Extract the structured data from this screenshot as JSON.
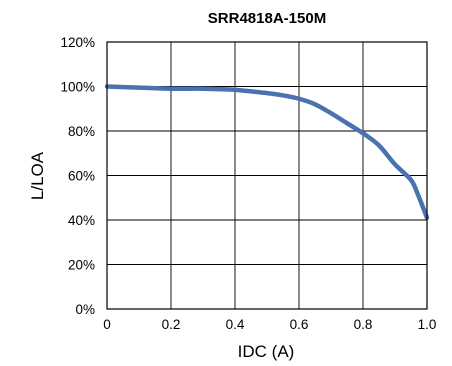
{
  "chart_data": {
    "type": "line",
    "title": "SRR4818A-150M",
    "xlabel": "IDC (A)",
    "ylabel": "L/LOA",
    "xlim": [
      0,
      1.0
    ],
    "ylim": [
      0,
      120
    ],
    "x_ticks": [
      "0",
      "0.2",
      "0.4",
      "0.6",
      "0.8",
      "1.0"
    ],
    "y_ticks": [
      "0%",
      "20%",
      "40%",
      "60%",
      "80%",
      "100%",
      "120%"
    ],
    "grid": true,
    "legend": "none",
    "series_color": "#4a72b0",
    "series": [
      {
        "x": [
          0,
          0.1,
          0.2,
          0.3,
          0.4,
          0.5,
          0.55,
          0.6,
          0.65,
          0.7,
          0.75,
          0.8,
          0.85,
          0.9,
          0.95,
          0.97,
          1.0
        ],
        "values": [
          100,
          99.5,
          99,
          99,
          98.5,
          97,
          96,
          94.5,
          92,
          88,
          83.5,
          79,
          73.5,
          65,
          58,
          52,
          41
        ]
      }
    ]
  }
}
